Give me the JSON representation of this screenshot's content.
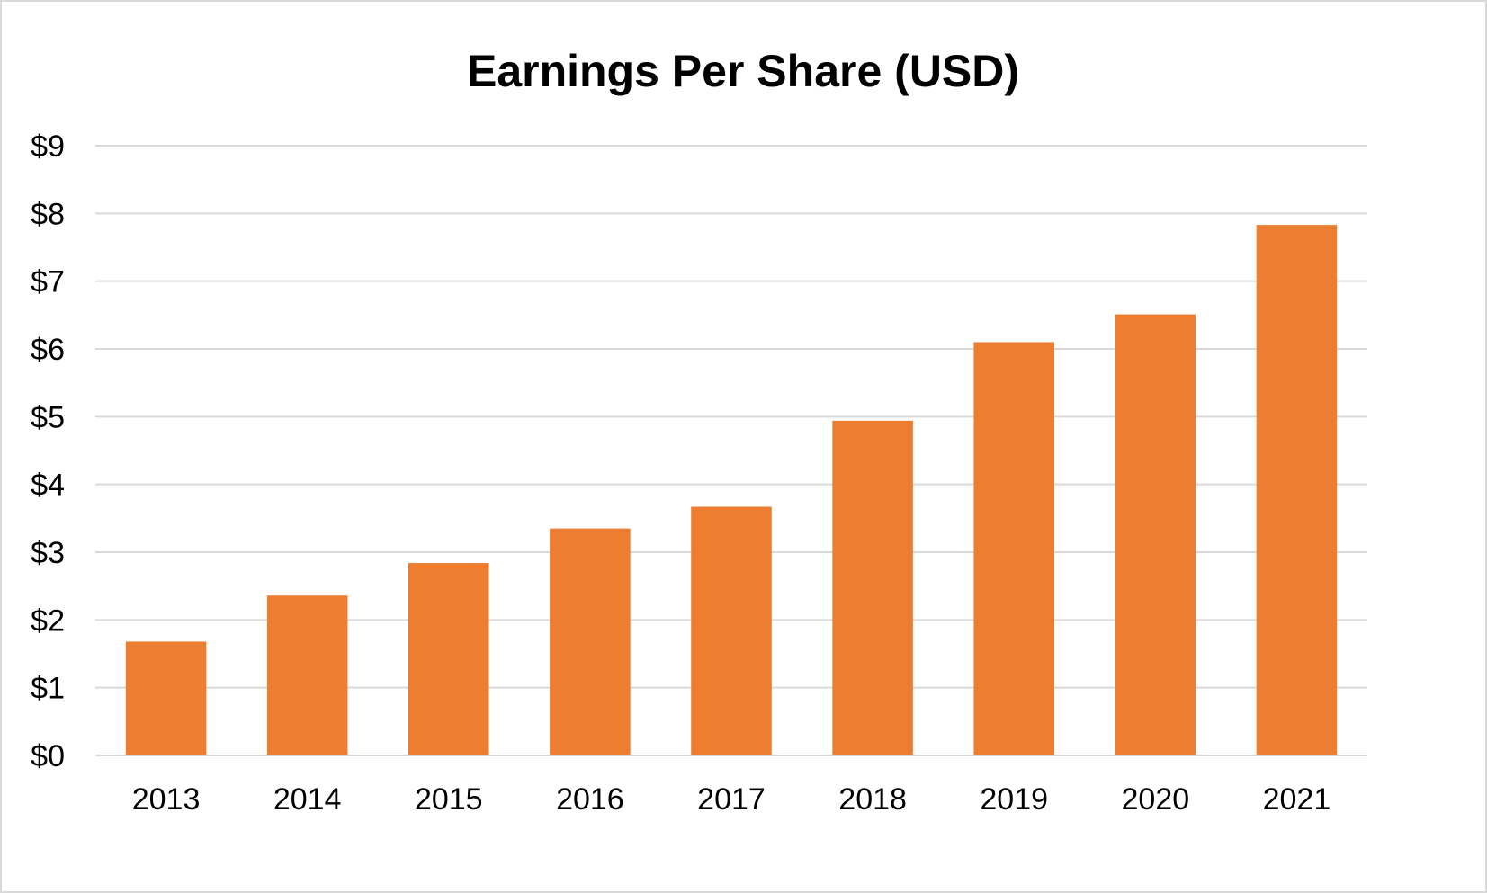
{
  "chart_data": {
    "type": "bar",
    "title": "Earnings Per Share (USD)",
    "xlabel": "",
    "ylabel": "",
    "categories": [
      "2013",
      "2014",
      "2015",
      "2016",
      "2017",
      "2018",
      "2019",
      "2020",
      "2021"
    ],
    "values": [
      1.68,
      2.36,
      2.84,
      3.35,
      3.67,
      4.94,
      6.1,
      6.51,
      7.83
    ],
    "ylim": [
      0,
      9
    ],
    "yticks": [
      0,
      1,
      2,
      3,
      4,
      5,
      6,
      7,
      8,
      9
    ],
    "ytick_labels": [
      "$0",
      "$1",
      "$2",
      "$3",
      "$4",
      "$5",
      "$6",
      "$7",
      "$8",
      "$9"
    ],
    "grid": true,
    "legend": "none",
    "colors": {
      "bar": "#ED7D31",
      "grid": "#D9D9D9",
      "border": "#D9D9D9"
    }
  }
}
